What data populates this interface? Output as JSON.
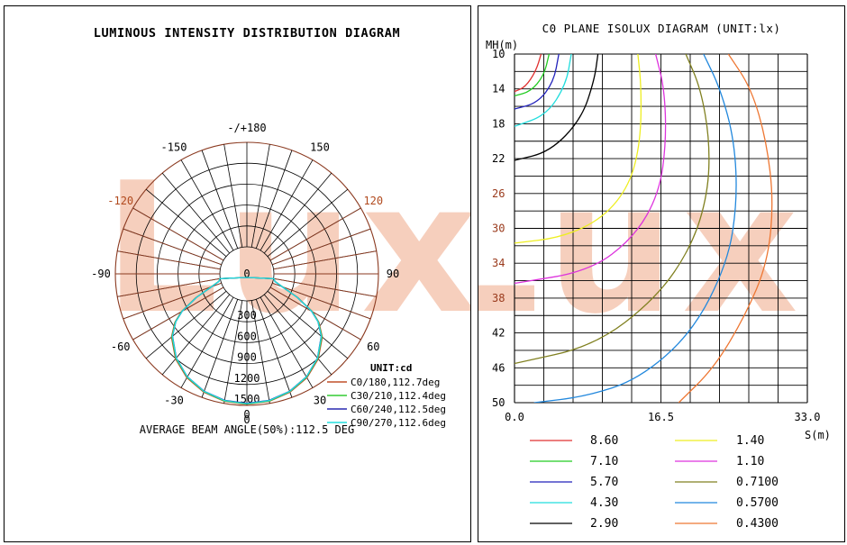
{
  "watermark": "Lux",
  "watermark_color": "#f4c0a8",
  "polar": {
    "chart_data": {
      "type": "polar",
      "title": "LUMINOUS INTENSITY DISTRIBUTION DIAGRAM",
      "angle_labels": [
        "-/+180",
        "150",
        "120",
        "90",
        "60",
        "30",
        "0",
        "-30",
        "-60",
        "-90",
        "-120",
        "-150"
      ],
      "radial_labels": [
        "0",
        "300",
        "600",
        "900",
        "1200",
        "1500"
      ],
      "rmax": 1500,
      "unit_label": "UNIT:cd",
      "series": [
        {
          "name": "C0/180,112.7deg",
          "color": "#c0502a",
          "values": [
            [
              0,
              1485
            ],
            [
              10,
              1470
            ],
            [
              20,
              1420
            ],
            [
              30,
              1335
            ],
            [
              40,
              1205
            ],
            [
              50,
              1025
            ],
            [
              56,
              860
            ],
            [
              60,
              700
            ],
            [
              65,
              420
            ],
            [
              70,
              160
            ],
            [
              75,
              30
            ],
            [
              80,
              5
            ]
          ]
        },
        {
          "name": "C30/210,112.4deg",
          "color": "#33cc33",
          "values": [
            [
              0,
              1480
            ],
            [
              10,
              1465
            ],
            [
              20,
              1412
            ],
            [
              30,
              1325
            ],
            [
              40,
              1195
            ],
            [
              50,
              1015
            ],
            [
              56,
              850
            ],
            [
              60,
              690
            ],
            [
              65,
              410
            ],
            [
              70,
              150
            ],
            [
              75,
              28
            ],
            [
              80,
              5
            ]
          ]
        },
        {
          "name": "C60/240,112.5deg",
          "color": "#2a2ab0",
          "values": [
            [
              0,
              1470
            ],
            [
              10,
              1455
            ],
            [
              20,
              1405
            ],
            [
              30,
              1318
            ],
            [
              40,
              1188
            ],
            [
              50,
              1005
            ],
            [
              56,
              842
            ],
            [
              60,
              682
            ],
            [
              65,
              405
            ],
            [
              70,
              148
            ],
            [
              75,
              27
            ],
            [
              80,
              5
            ]
          ]
        },
        {
          "name": "C90/270,112.6deg",
          "color": "#22dddd",
          "values": [
            [
              0,
              1475
            ],
            [
              10,
              1460
            ],
            [
              20,
              1408
            ],
            [
              30,
              1320
            ],
            [
              40,
              1190
            ],
            [
              50,
              1008
            ],
            [
              56,
              845
            ],
            [
              60,
              686
            ],
            [
              65,
              408
            ],
            [
              70,
              150
            ],
            [
              75,
              27
            ],
            [
              80,
              5
            ]
          ]
        }
      ],
      "footer": "AVERAGE BEAM ANGLE(50%):112.5 DEG"
    }
  },
  "isolux": {
    "chart_data": {
      "type": "line",
      "title": "C0 PLANE ISOLUX DIAGRAM (UNIT:lx)",
      "ylabel": "MH(m)",
      "xlabel": "S(m)",
      "xlim": [
        0,
        33
      ],
      "ylim": [
        10,
        50
      ],
      "x_tick_labels": [
        "0.0",
        "16.5",
        "33.0"
      ],
      "y_tick_labels": [
        "10",
        "14",
        "18",
        "22",
        "26",
        "30",
        "34",
        "38",
        "42",
        "46",
        "50"
      ],
      "series": [
        {
          "name": "8.60",
          "color": "#e03030",
          "values": [
            [
              3.0,
              10.0
            ],
            [
              2.4,
              12.0
            ],
            [
              1.2,
              13.8
            ],
            [
              0.0,
              14.3
            ]
          ]
        },
        {
          "name": "7.10",
          "color": "#22cc22",
          "values": [
            [
              3.9,
              10.0
            ],
            [
              3.3,
              12.5
            ],
            [
              1.8,
              14.3
            ],
            [
              0.0,
              14.8
            ]
          ]
        },
        {
          "name": "5.70",
          "color": "#2222bb",
          "values": [
            [
              5.0,
              10.0
            ],
            [
              4.4,
              13.2
            ],
            [
              2.6,
              15.6
            ],
            [
              0.0,
              16.3
            ]
          ]
        },
        {
          "name": "4.30",
          "color": "#22dddd",
          "values": [
            [
              6.4,
              10.0
            ],
            [
              5.8,
              13.5
            ],
            [
              3.6,
              17.0
            ],
            [
              0.0,
              18.3
            ]
          ]
        },
        {
          "name": "2.90",
          "color": "#000000",
          "values": [
            [
              9.4,
              10.0
            ],
            [
              9.0,
              13.0
            ],
            [
              7.5,
              17.5
            ],
            [
              4.0,
              21.2
            ],
            [
              0.0,
              22.2
            ]
          ]
        },
        {
          "name": "1.40",
          "color": "#eeee22",
          "values": [
            [
              13.9,
              10.0
            ],
            [
              14.3,
              14.0
            ],
            [
              14.2,
              20.0
            ],
            [
              13.0,
              25.0
            ],
            [
              10.0,
              28.8
            ],
            [
              5.5,
              31.0
            ],
            [
              0.0,
              31.7
            ]
          ]
        },
        {
          "name": "1.10",
          "color": "#dd33dd",
          "values": [
            [
              15.9,
              10.0
            ],
            [
              16.9,
              14.0
            ],
            [
              17.1,
              20.0
            ],
            [
              16.3,
              26.0
            ],
            [
              13.5,
              31.0
            ],
            [
              8.5,
              34.9
            ],
            [
              0.0,
              36.3
            ]
          ]
        },
        {
          "name": "0.7100",
          "color": "#808020",
          "values": [
            [
              19.3,
              10.0
            ],
            [
              21.0,
              14.0
            ],
            [
              22.0,
              20.0
            ],
            [
              21.8,
              26.0
            ],
            [
              20.0,
              32.0
            ],
            [
              16.0,
              38.0
            ],
            [
              9.0,
              43.5
            ],
            [
              0.0,
              45.5
            ]
          ]
        },
        {
          "name": "0.5700",
          "color": "#2288dd",
          "values": [
            [
              21.3,
              10.0
            ],
            [
              23.2,
              14.0
            ],
            [
              24.8,
              20.0
            ],
            [
              25.1,
              27.0
            ],
            [
              24.0,
              34.0
            ],
            [
              20.0,
              42.0
            ],
            [
              14.0,
              47.3
            ],
            [
              8.0,
              49.3
            ],
            [
              2.2,
              50.0
            ]
          ]
        },
        {
          "name": "0.4300",
          "color": "#ee7733",
          "values": [
            [
              24.1,
              10.0
            ],
            [
              26.7,
              14.0
            ],
            [
              28.4,
              20.0
            ],
            [
              29.2,
              27.0
            ],
            [
              28.5,
              34.0
            ],
            [
              26.0,
              40.0
            ],
            [
              22.5,
              46.0
            ],
            [
              18.5,
              50.0
            ]
          ]
        }
      ]
    }
  }
}
